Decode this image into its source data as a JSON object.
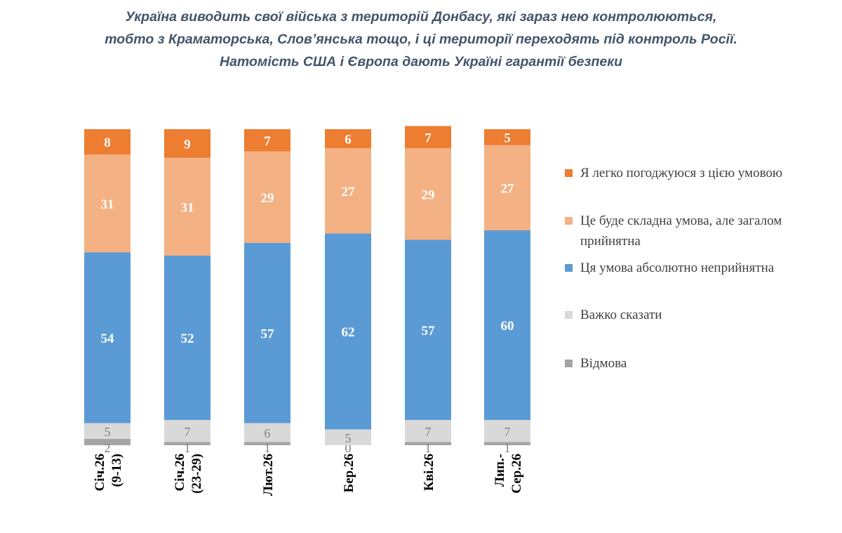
{
  "chart_data": {
    "type": "bar",
    "stacked": true,
    "orientation": "vertical",
    "title_lines": [
      "Україна виводить свої війська з територій Донбасу, які зараз нею контролюються,",
      "тобто з Краматорська, Слов’янська тощо, і ці території переходять під контроль Росії.",
      "Натомість США і Європа дають Україні гарантії безпеки"
    ],
    "categories": [
      [
        "Січ.26",
        "(9-13)"
      ],
      [
        "Січ.26",
        "(23-29)"
      ],
      [
        "Лют.26"
      ],
      [
        "Бер.26"
      ],
      [
        "Кві.26"
      ],
      [
        "Лип.-",
        "Сер.26"
      ]
    ],
    "series": [
      {
        "name": "Відмова",
        "color": "#A5A5A5",
        "values": [
          2,
          1,
          1,
          0,
          1,
          1
        ]
      },
      {
        "name": "Важко сказати",
        "color": "#D9D9D9",
        "values": [
          5,
          7,
          6,
          5,
          7,
          7
        ]
      },
      {
        "name": "Ця умова абсолютно неприйнятна",
        "color": "#5B9BD5",
        "values": [
          54,
          52,
          57,
          62,
          57,
          60
        ]
      },
      {
        "name": "Це буде складна умова, але загалом прийнятна",
        "color": "#F4B183",
        "values": [
          31,
          31,
          29,
          27,
          29,
          27
        ]
      },
      {
        "name": "Я легко погоджуюся з цією умовою",
        "color": "#ED7D31",
        "values": [
          8,
          9,
          7,
          6,
          7,
          5
        ]
      }
    ],
    "legend_order": [
      {
        "text": "Я легко погоджуюся з цією умовою",
        "color": "#ED7D31"
      },
      {
        "text": "Це буде складна умова, але загалом прийнятна",
        "color": "#F4B183"
      },
      {
        "text": "Ця умова абсолютно неприйнятна",
        "color": "#5B9BD5"
      },
      {
        "text": "Важко сказати",
        "color": "#D9D9D9"
      },
      {
        "text": "Відмова",
        "color": "#A5A5A5"
      }
    ],
    "legend_position": "right",
    "grid": false,
    "unit": "%"
  }
}
